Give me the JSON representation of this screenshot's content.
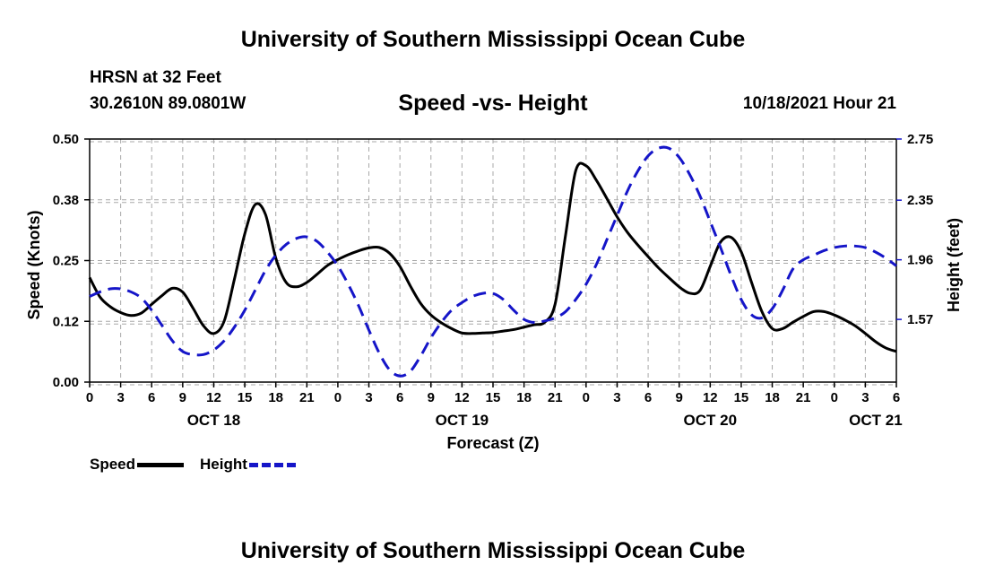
{
  "header": {
    "title": "University of Southern Mississippi Ocean Cube",
    "station": "HRSN at 32 Feet",
    "coords": "30.2610N  89.0801W",
    "subtitle": "Speed -vs- Height",
    "datetime": "10/18/2021 Hour 21"
  },
  "footer": {
    "title": "University of Southern Mississippi Ocean Cube"
  },
  "legend": {
    "speed_label": "Speed",
    "height_label": "Height"
  },
  "chart_data": {
    "type": "line",
    "title": "Speed -vs- Height",
    "xlabel": "Forecast (Z)",
    "ylabel": "Speed (Knots)",
    "ylabel_right": "Height (feet)",
    "xlim": [
      0,
      78
    ],
    "ylim": [
      0,
      0.5
    ],
    "ylim_right": [
      1.16,
      2.75
    ],
    "grid": true,
    "x_ticks": [
      0,
      3,
      6,
      9,
      12,
      15,
      18,
      21,
      24,
      27,
      30,
      33,
      36,
      39,
      42,
      45,
      48,
      51,
      54,
      57,
      60,
      63,
      66,
      69,
      72,
      75,
      78
    ],
    "x_tick_labels": [
      "0",
      "3",
      "6",
      "9",
      "12",
      "15",
      "18",
      "21",
      "0",
      "3",
      "6",
      "9",
      "12",
      "15",
      "18",
      "21",
      "0",
      "3",
      "6",
      "9",
      "12",
      "15",
      "18",
      "21",
      "0",
      "3",
      "6"
    ],
    "date_labels": [
      {
        "x": 12,
        "label": "OCT 18"
      },
      {
        "x": 36,
        "label": "OCT 19"
      },
      {
        "x": 60,
        "label": "OCT 20"
      },
      {
        "x": 76,
        "label": "OCT 21"
      }
    ],
    "y_ticks": [
      0.0,
      0.125,
      0.25,
      0.375,
      0.5
    ],
    "y_tick_labels": [
      "0.00",
      "0.12",
      "0.25",
      "0.38",
      "0.50"
    ],
    "y_right_ticks": [
      1.57,
      1.96,
      2.35,
      2.75
    ],
    "y_right_tick_labels": [
      "1.57",
      "1.96",
      "2.35",
      "2.75"
    ],
    "legend_position": "bottom-left",
    "series": [
      {
        "name": "Speed",
        "axis": "left",
        "color": "#000000",
        "dash": "solid",
        "x": [
          0,
          1,
          2,
          3,
          4,
          5,
          6,
          7,
          8,
          9,
          10,
          11,
          12,
          13,
          14,
          15,
          16,
          17,
          18,
          19,
          20,
          21,
          22,
          23,
          24,
          25,
          26,
          27,
          28,
          29,
          30,
          31,
          32,
          33,
          34,
          35,
          36,
          37,
          38,
          39,
          40,
          41,
          42,
          43,
          44,
          45,
          46,
          47,
          48,
          49,
          50,
          51,
          52,
          53,
          54,
          55,
          56,
          57,
          58,
          59,
          60,
          61,
          62,
          63,
          64,
          65,
          66,
          67,
          68,
          69,
          70,
          71,
          72,
          73,
          74,
          75,
          76,
          77,
          78
        ],
        "values": [
          0.215,
          0.175,
          0.155,
          0.143,
          0.137,
          0.142,
          0.16,
          0.178,
          0.193,
          0.185,
          0.152,
          0.116,
          0.1,
          0.125,
          0.212,
          0.305,
          0.365,
          0.345,
          0.255,
          0.205,
          0.196,
          0.205,
          0.222,
          0.24,
          0.252,
          0.262,
          0.27,
          0.276,
          0.277,
          0.265,
          0.238,
          0.198,
          0.162,
          0.138,
          0.122,
          0.11,
          0.101,
          0.1,
          0.101,
          0.102,
          0.105,
          0.108,
          0.113,
          0.118,
          0.123,
          0.16,
          0.3,
          0.435,
          0.445,
          0.415,
          0.378,
          0.34,
          0.308,
          0.282,
          0.258,
          0.235,
          0.215,
          0.196,
          0.183,
          0.188,
          0.238,
          0.288,
          0.298,
          0.268,
          0.205,
          0.145,
          0.11,
          0.11,
          0.123,
          0.135,
          0.145,
          0.145,
          0.138,
          0.128,
          0.116,
          0.1,
          0.083,
          0.07,
          0.063
        ]
      },
      {
        "name": "Height",
        "axis": "right",
        "color": "#1515c8",
        "dash": "dashed",
        "x": [
          0,
          1,
          2,
          3,
          4,
          5,
          6,
          7,
          8,
          9,
          10,
          11,
          12,
          13,
          14,
          15,
          16,
          17,
          18,
          19,
          20,
          21,
          22,
          23,
          24,
          25,
          26,
          27,
          28,
          29,
          30,
          31,
          32,
          33,
          34,
          35,
          36,
          37,
          38,
          39,
          40,
          41,
          42,
          43,
          44,
          45,
          46,
          47,
          48,
          49,
          50,
          51,
          52,
          53,
          54,
          55,
          56,
          57,
          58,
          59,
          60,
          61,
          62,
          63,
          64,
          65,
          66,
          67,
          68,
          69,
          70,
          71,
          72,
          73,
          74,
          75,
          76,
          77,
          78
        ],
        "values": [
          1.72,
          1.75,
          1.77,
          1.77,
          1.75,
          1.71,
          1.63,
          1.53,
          1.43,
          1.36,
          1.34,
          1.34,
          1.37,
          1.43,
          1.52,
          1.63,
          1.76,
          1.89,
          1.99,
          2.06,
          2.1,
          2.11,
          2.08,
          2.01,
          1.92,
          1.8,
          1.66,
          1.5,
          1.35,
          1.24,
          1.2,
          1.23,
          1.33,
          1.45,
          1.55,
          1.63,
          1.68,
          1.72,
          1.74,
          1.74,
          1.7,
          1.63,
          1.57,
          1.55,
          1.56,
          1.58,
          1.62,
          1.7,
          1.8,
          1.93,
          2.09,
          2.25,
          2.41,
          2.54,
          2.64,
          2.69,
          2.69,
          2.63,
          2.52,
          2.38,
          2.21,
          2.04,
          1.86,
          1.7,
          1.6,
          1.58,
          1.64,
          1.76,
          1.9,
          1.96,
          1.99,
          2.02,
          2.04,
          2.05,
          2.05,
          2.04,
          2.01,
          1.97,
          1.92
        ]
      }
    ]
  }
}
